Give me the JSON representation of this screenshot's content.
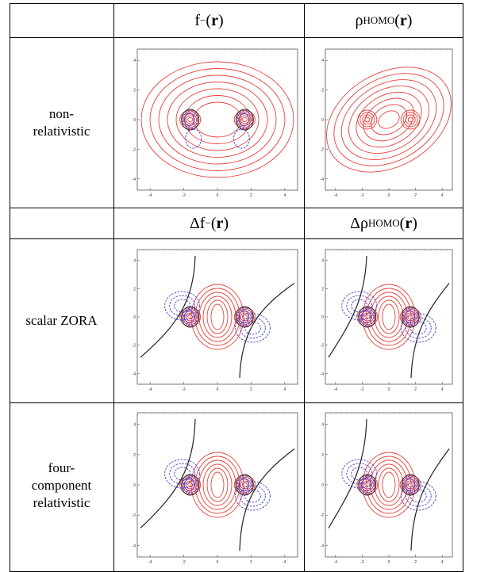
{
  "columns": [
    {
      "header_func": "f",
      "header_sup": "−",
      "header_arg": "r"
    },
    {
      "header_func": "ρ",
      "header_sub": "HOMO",
      "header_arg": "r"
    }
  ],
  "diff_columns": [
    {
      "header_prefix": "Δf",
      "header_sup": "−",
      "header_arg": "r"
    },
    {
      "header_prefix": "Δρ",
      "header_sub": "HOMO",
      "header_arg": "r"
    }
  ],
  "rows": [
    {
      "label_lines": [
        "non-",
        "relativistic"
      ]
    },
    {
      "label_lines": [
        "scalar ZORA"
      ]
    },
    {
      "label_lines": [
        "four-",
        "component",
        "relativistic"
      ]
    }
  ],
  "axis_ticks": [
    "-4",
    "-2",
    "0",
    "2",
    "4"
  ],
  "colors": {
    "positive": "#e8413c",
    "negative": "#3a3fd8",
    "zero": "#222222"
  }
}
